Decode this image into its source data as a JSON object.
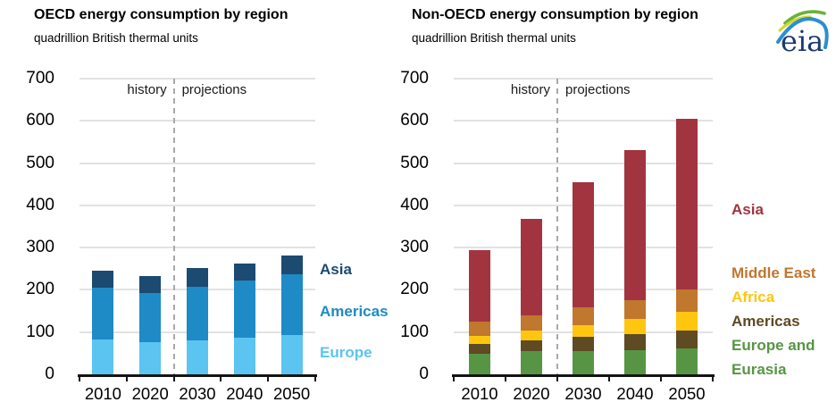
{
  "figure": {
    "logo_text": "eia"
  },
  "chart_data": [
    {
      "type": "bar",
      "stacked": true,
      "title": "OECD energy consumption by region",
      "subtitle": "quadrillion British thermal units",
      "xlabel": "",
      "ylabel": "quadrillion British thermal units",
      "categories": [
        "2010",
        "2020",
        "2030",
        "2040",
        "2050"
      ],
      "series": [
        {
          "name": "Europe",
          "color": "#5bc4f0",
          "values": [
            82,
            76,
            80,
            87,
            93
          ]
        },
        {
          "name": "Americas",
          "color": "#1e8ac6",
          "values": [
            124,
            116,
            127,
            134,
            143
          ]
        },
        {
          "name": "Asia",
          "color": "#1c4a70",
          "values": [
            40,
            40,
            44,
            41,
            45
          ]
        }
      ],
      "ylim": [
        0,
        700
      ],
      "yticks": [
        0,
        100,
        200,
        300,
        400,
        500,
        600,
        700
      ],
      "grid": true,
      "divider_after_category": "2020",
      "annotations": {
        "history": "history",
        "projections": "projections"
      },
      "legend_position": "right",
      "legend": [
        {
          "label": "Asia",
          "color": "#1c4a70"
        },
        {
          "label": "Americas",
          "color": "#1e8ac6"
        },
        {
          "label": "Europe",
          "color": "#5bc4f0"
        }
      ]
    },
    {
      "type": "bar",
      "stacked": true,
      "title": "Non-OECD energy consumption by region",
      "subtitle": "quadrillion British thermal units",
      "xlabel": "",
      "ylabel": "quadrillion British thermal units",
      "categories": [
        "2010",
        "2020",
        "2030",
        "2040",
        "2050"
      ],
      "series": [
        {
          "name": "Europe and Eurasia",
          "color": "#579544",
          "values": [
            48,
            54,
            54,
            57,
            62
          ]
        },
        {
          "name": "Americas",
          "color": "#5e4a23",
          "values": [
            24,
            27,
            35,
            38,
            42
          ]
        },
        {
          "name": "Africa",
          "color": "#fec60f",
          "values": [
            18,
            22,
            28,
            36,
            44
          ]
        },
        {
          "name": "Middle East",
          "color": "#c0772e",
          "values": [
            35,
            37,
            42,
            45,
            52
          ]
        },
        {
          "name": "Asia",
          "color": "#a2343f",
          "values": [
            170,
            228,
            296,
            355,
            405
          ]
        }
      ],
      "ylim": [
        0,
        700
      ],
      "yticks": [
        0,
        100,
        200,
        300,
        400,
        500,
        600,
        700
      ],
      "grid": true,
      "divider_after_category": "2020",
      "annotations": {
        "history": "history",
        "projections": "projections"
      },
      "legend_position": "right",
      "legend": [
        {
          "label": "Asia",
          "color": "#a2343f"
        },
        {
          "label": "Middle East",
          "color": "#c0772e"
        },
        {
          "label": "Africa",
          "color": "#fec60f"
        },
        {
          "label": "Americas",
          "color": "#5e4a23"
        },
        {
          "label": "Europe and Eurasia",
          "color": "#579544"
        }
      ]
    }
  ]
}
